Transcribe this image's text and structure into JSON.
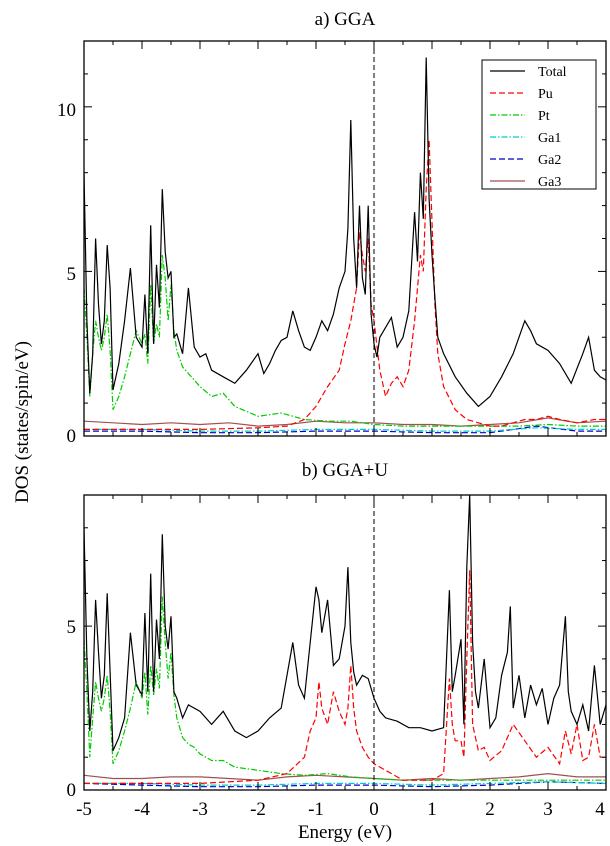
{
  "chart_data": [
    {
      "type": "line",
      "title": "a) GGA",
      "xlim": [
        -5,
        4
      ],
      "ylim": [
        0,
        12
      ],
      "ytick_labels": [
        "0",
        "5",
        "10"
      ],
      "fermi_line_x": 0,
      "legend_position": "top-right",
      "series": [
        {
          "name": "Total",
          "color": "#000000",
          "dash": "solid",
          "x": [
            -5.0,
            -4.95,
            -4.9,
            -4.85,
            -4.8,
            -4.75,
            -4.7,
            -4.65,
            -4.6,
            -4.55,
            -4.5,
            -4.45,
            -4.4,
            -4.3,
            -4.2,
            -4.1,
            -4.0,
            -3.95,
            -3.9,
            -3.85,
            -3.8,
            -3.75,
            -3.7,
            -3.65,
            -3.6,
            -3.55,
            -3.5,
            -3.45,
            -3.4,
            -3.3,
            -3.2,
            -3.1,
            -3.0,
            -2.9,
            -2.8,
            -2.6,
            -2.4,
            -2.2,
            -2.0,
            -1.9,
            -1.8,
            -1.7,
            -1.6,
            -1.5,
            -1.4,
            -1.3,
            -1.2,
            -1.1,
            -1.0,
            -0.9,
            -0.8,
            -0.7,
            -0.6,
            -0.5,
            -0.45,
            -0.4,
            -0.35,
            -0.3,
            -0.25,
            -0.2,
            -0.15,
            -0.1,
            -0.05,
            0.0,
            0.05,
            0.1,
            0.2,
            0.3,
            0.4,
            0.5,
            0.6,
            0.7,
            0.75,
            0.8,
            0.85,
            0.9,
            0.95,
            1.0,
            1.05,
            1.1,
            1.2,
            1.4,
            1.6,
            1.8,
            2.0,
            2.2,
            2.4,
            2.6,
            2.7,
            2.8,
            3.0,
            3.2,
            3.4,
            3.6,
            3.7,
            3.8,
            3.9,
            4.0
          ],
          "y": [
            8.0,
            3.5,
            1.3,
            2.5,
            6.0,
            4.0,
            2.8,
            3.5,
            5.8,
            4.5,
            1.4,
            1.8,
            2.2,
            3.5,
            5.1,
            3.0,
            2.7,
            4.3,
            2.5,
            6.4,
            2.8,
            5.2,
            3.9,
            7.5,
            5.6,
            4.8,
            5.0,
            3.0,
            3.1,
            2.5,
            4.5,
            2.7,
            2.4,
            2.5,
            2.0,
            1.8,
            1.6,
            2.0,
            2.5,
            1.9,
            2.2,
            2.6,
            2.9,
            3.0,
            3.8,
            3.2,
            2.7,
            2.6,
            3.0,
            3.5,
            3.2,
            3.7,
            4.5,
            5.0,
            6.3,
            9.6,
            6.0,
            4.5,
            7.0,
            4.8,
            4.3,
            7.0,
            3.7,
            2.8,
            2.4,
            3.0,
            3.3,
            3.6,
            2.7,
            3.0,
            3.8,
            6.8,
            5.3,
            8.0,
            6.6,
            11.5,
            7.2,
            5.5,
            4.2,
            3.0,
            2.5,
            1.8,
            1.3,
            0.9,
            1.2,
            1.8,
            2.5,
            3.5,
            3.2,
            2.8,
            2.6,
            2.2,
            1.6,
            2.5,
            3.0,
            2.0,
            1.8,
            1.7
          ]
        },
        {
          "name": "Pu",
          "color": "#ff0000",
          "dash": "6 3",
          "x": [
            -5.0,
            -4.0,
            -3.0,
            -2.0,
            -1.5,
            -1.2,
            -1.0,
            -0.8,
            -0.6,
            -0.5,
            -0.4,
            -0.3,
            -0.25,
            -0.2,
            -0.15,
            -0.1,
            -0.05,
            0.0,
            0.1,
            0.2,
            0.3,
            0.4,
            0.5,
            0.6,
            0.7,
            0.75,
            0.8,
            0.85,
            0.9,
            0.95,
            1.0,
            1.05,
            1.1,
            1.2,
            1.4,
            1.6,
            1.8,
            2.0,
            2.2,
            2.4,
            2.6,
            2.8,
            3.0,
            3.2,
            3.5,
            3.8,
            4.0
          ],
          "y": [
            0.2,
            0.2,
            0.2,
            0.25,
            0.3,
            0.5,
            0.9,
            1.5,
            2.0,
            2.8,
            3.5,
            4.5,
            6.2,
            5.5,
            5.0,
            6.0,
            4.0,
            3.5,
            2.0,
            1.2,
            1.6,
            1.8,
            1.5,
            2.0,
            3.5,
            4.5,
            5.5,
            5.0,
            7.5,
            9.0,
            6.5,
            4.0,
            2.5,
            1.5,
            0.8,
            0.5,
            0.4,
            0.3,
            0.3,
            0.4,
            0.5,
            0.5,
            0.6,
            0.5,
            0.4,
            0.5,
            0.5
          ]
        },
        {
          "name": "Pt",
          "color": "#00cc00",
          "dash": "6 2 1.5 2",
          "x": [
            -5.0,
            -4.95,
            -4.9,
            -4.85,
            -4.8,
            -4.75,
            -4.7,
            -4.65,
            -4.6,
            -4.55,
            -4.5,
            -4.4,
            -4.3,
            -4.2,
            -4.1,
            -4.0,
            -3.95,
            -3.9,
            -3.85,
            -3.8,
            -3.75,
            -3.7,
            -3.65,
            -3.6,
            -3.55,
            -3.5,
            -3.45,
            -3.4,
            -3.3,
            -3.2,
            -3.1,
            -3.0,
            -2.8,
            -2.6,
            -2.4,
            -2.0,
            -1.6,
            -1.2,
            -0.8,
            -0.4,
            0.0,
            0.5,
            1.0,
            1.5,
            2.0,
            2.5,
            3.0,
            3.5,
            4.0
          ],
          "y": [
            4.5,
            3.0,
            1.2,
            2.5,
            3.5,
            3.0,
            2.6,
            3.0,
            3.7,
            2.6,
            0.8,
            1.2,
            1.8,
            2.5,
            3.2,
            2.8,
            3.1,
            2.2,
            4.6,
            2.8,
            3.4,
            3.0,
            5.5,
            4.8,
            3.5,
            4.6,
            3.2,
            2.6,
            2.1,
            1.9,
            1.7,
            1.5,
            1.2,
            1.3,
            0.9,
            0.6,
            0.7,
            0.5,
            0.45,
            0.45,
            0.35,
            0.3,
            0.3,
            0.3,
            0.3,
            0.3,
            0.35,
            0.3,
            0.3
          ]
        },
        {
          "name": "Ga1",
          "color": "#00cccc",
          "dash": "6 2 1.5 2",
          "x": [
            -5.0,
            -4.0,
            -3.0,
            -2.0,
            -1.0,
            0.0,
            1.0,
            2.0,
            2.8,
            3.5,
            4.0
          ],
          "y": [
            0.2,
            0.2,
            0.15,
            0.15,
            0.2,
            0.2,
            0.15,
            0.15,
            0.25,
            0.2,
            0.2
          ]
        },
        {
          "name": "Ga2",
          "color": "#0000cc",
          "dash": "6 3",
          "x": [
            -5.0,
            -4.0,
            -3.0,
            -2.0,
            -1.0,
            0.0,
            1.0,
            2.0,
            2.8,
            3.5,
            4.0
          ],
          "y": [
            0.15,
            0.15,
            0.1,
            0.1,
            0.15,
            0.15,
            0.1,
            0.1,
            0.3,
            0.15,
            0.15
          ]
        },
        {
          "name": "Ga3",
          "color": "#a05050",
          "dash": "solid",
          "x": [
            -5.0,
            -4.5,
            -4.0,
            -3.5,
            -3.0,
            -2.5,
            -2.0,
            -1.5,
            -1.0,
            -0.5,
            0.0,
            0.5,
            1.0,
            1.5,
            2.0,
            2.5,
            3.0,
            3.5,
            4.0
          ],
          "y": [
            0.45,
            0.4,
            0.35,
            0.4,
            0.35,
            0.4,
            0.3,
            0.35,
            0.45,
            0.4,
            0.4,
            0.35,
            0.35,
            0.3,
            0.35,
            0.4,
            0.55,
            0.4,
            0.45
          ]
        }
      ]
    },
    {
      "type": "line",
      "title": "b) GGA+U",
      "xlim": [
        -5,
        4
      ],
      "ylim": [
        0,
        9
      ],
      "ytick_labels": [
        "0",
        "5"
      ],
      "fermi_line_x": 0,
      "series": [
        {
          "name": "Total",
          "color": "#000000",
          "dash": "solid",
          "x": [
            -5.0,
            -4.95,
            -4.9,
            -4.85,
            -4.8,
            -4.75,
            -4.7,
            -4.65,
            -4.6,
            -4.55,
            -4.5,
            -4.4,
            -4.3,
            -4.2,
            -4.1,
            -4.0,
            -3.95,
            -3.9,
            -3.85,
            -3.8,
            -3.75,
            -3.7,
            -3.65,
            -3.6,
            -3.55,
            -3.5,
            -3.45,
            -3.4,
            -3.3,
            -3.2,
            -3.1,
            -3.0,
            -2.8,
            -2.6,
            -2.4,
            -2.2,
            -2.0,
            -1.8,
            -1.6,
            -1.5,
            -1.4,
            -1.3,
            -1.2,
            -1.1,
            -1.0,
            -0.95,
            -0.9,
            -0.8,
            -0.7,
            -0.6,
            -0.5,
            -0.45,
            -0.4,
            -0.35,
            -0.3,
            -0.2,
            -0.1,
            0.0,
            0.1,
            0.2,
            0.4,
            0.6,
            0.8,
            1.0,
            1.2,
            1.3,
            1.35,
            1.4,
            1.5,
            1.55,
            1.6,
            1.65,
            1.7,
            1.75,
            1.8,
            1.9,
            2.0,
            2.1,
            2.2,
            2.3,
            2.35,
            2.4,
            2.5,
            2.6,
            2.7,
            2.8,
            2.9,
            3.0,
            3.1,
            3.2,
            3.3,
            3.35,
            3.4,
            3.5,
            3.6,
            3.7,
            3.8,
            3.9,
            4.0
          ],
          "y": [
            8.0,
            4.0,
            1.8,
            3.0,
            5.8,
            4.2,
            2.8,
            3.5,
            6.0,
            3.6,
            1.2,
            1.6,
            2.2,
            4.8,
            3.2,
            2.9,
            5.4,
            3.0,
            6.6,
            3.0,
            5.2,
            4.0,
            7.8,
            5.0,
            4.3,
            5.3,
            3.0,
            2.8,
            2.2,
            2.6,
            2.5,
            2.4,
            2.0,
            2.4,
            1.8,
            1.6,
            1.8,
            2.2,
            2.5,
            3.5,
            4.5,
            3.2,
            2.8,
            4.5,
            6.2,
            5.8,
            4.8,
            5.8,
            3.8,
            4.0,
            5.0,
            6.8,
            4.5,
            3.6,
            3.2,
            3.5,
            3.4,
            2.8,
            2.4,
            2.2,
            2.1,
            1.9,
            1.9,
            1.8,
            1.9,
            6.1,
            3.0,
            3.5,
            4.6,
            2.0,
            6.8,
            9.0,
            4.5,
            3.0,
            2.5,
            4.0,
            1.9,
            2.2,
            3.5,
            4.2,
            5.6,
            2.5,
            3.5,
            2.2,
            3.2,
            2.6,
            3.1,
            2.0,
            2.8,
            3.2,
            5.3,
            3.0,
            2.4,
            2.0,
            2.6,
            1.8,
            3.8,
            2.0,
            2.6
          ]
        },
        {
          "name": "Pu",
          "color": "#ff0000",
          "dash": "6 3",
          "x": [
            -5.0,
            -4.0,
            -3.0,
            -2.0,
            -1.5,
            -1.2,
            -1.1,
            -1.0,
            -0.95,
            -0.9,
            -0.8,
            -0.7,
            -0.6,
            -0.5,
            -0.45,
            -0.4,
            -0.35,
            -0.3,
            -0.2,
            -0.1,
            0.0,
            0.2,
            0.5,
            1.0,
            1.2,
            1.3,
            1.35,
            1.4,
            1.5,
            1.55,
            1.6,
            1.65,
            1.7,
            1.75,
            1.8,
            1.9,
            2.0,
            2.2,
            2.4,
            2.6,
            2.8,
            3.0,
            3.2,
            3.3,
            3.4,
            3.5,
            3.6,
            3.7,
            3.8,
            3.9,
            4.0
          ],
          "y": [
            0.2,
            0.2,
            0.2,
            0.3,
            0.5,
            1.0,
            1.8,
            2.2,
            3.3,
            2.5,
            2.0,
            3.0,
            2.4,
            2.0,
            2.5,
            3.8,
            2.5,
            1.8,
            1.3,
            1.0,
            0.8,
            0.6,
            0.3,
            0.3,
            0.5,
            3.4,
            2.0,
            1.5,
            1.5,
            1.0,
            4.0,
            6.7,
            2.0,
            1.6,
            1.2,
            1.3,
            0.9,
            1.2,
            2.0,
            1.5,
            1.0,
            1.3,
            0.8,
            1.8,
            1.1,
            2.0,
            0.9,
            1.0,
            2.0,
            1.0,
            1.0
          ]
        },
        {
          "name": "Pt",
          "color": "#00cc00",
          "dash": "6 2 1.5 2",
          "x": [
            -5.0,
            -4.95,
            -4.9,
            -4.85,
            -4.8,
            -4.75,
            -4.7,
            -4.65,
            -4.6,
            -4.55,
            -4.5,
            -4.4,
            -4.3,
            -4.2,
            -4.1,
            -4.0,
            -3.95,
            -3.9,
            -3.85,
            -3.8,
            -3.75,
            -3.7,
            -3.65,
            -3.6,
            -3.55,
            -3.5,
            -3.45,
            -3.4,
            -3.3,
            -3.2,
            -3.1,
            -3.0,
            -2.8,
            -2.6,
            -2.4,
            -2.0,
            -1.6,
            -1.2,
            -0.8,
            -0.4,
            0.0,
            0.5,
            1.0,
            1.5,
            2.0,
            2.5,
            3.0,
            3.5,
            4.0
          ],
          "y": [
            4.6,
            3.0,
            1.0,
            2.2,
            3.3,
            2.8,
            2.4,
            2.8,
            3.5,
            2.4,
            0.8,
            1.2,
            1.8,
            2.5,
            3.3,
            2.8,
            3.6,
            2.3,
            3.8,
            2.9,
            3.7,
            3.1,
            5.9,
            4.5,
            3.4,
            4.2,
            2.9,
            2.2,
            1.6,
            1.4,
            1.3,
            1.1,
            0.9,
            0.9,
            0.7,
            0.6,
            0.5,
            0.45,
            0.5,
            0.4,
            0.35,
            0.3,
            0.3,
            0.3,
            0.3,
            0.3,
            0.3,
            0.3,
            0.3
          ]
        },
        {
          "name": "Ga1",
          "color": "#00cccc",
          "dash": "6 2 1.5 2",
          "x": [
            -5.0,
            -4.0,
            -3.0,
            -2.0,
            -1.0,
            0.0,
            1.0,
            2.0,
            3.0,
            4.0
          ],
          "y": [
            0.2,
            0.2,
            0.15,
            0.15,
            0.2,
            0.2,
            0.15,
            0.2,
            0.25,
            0.2
          ]
        },
        {
          "name": "Ga2",
          "color": "#0000cc",
          "dash": "6 3",
          "x": [
            -5.0,
            -4.0,
            -3.0,
            -2.0,
            -1.0,
            0.0,
            1.0,
            2.0,
            3.0,
            4.0
          ],
          "y": [
            0.2,
            0.15,
            0.1,
            0.1,
            0.15,
            0.15,
            0.1,
            0.15,
            0.25,
            0.2
          ]
        },
        {
          "name": "Ga3",
          "color": "#a05050",
          "dash": "solid",
          "x": [
            -5.0,
            -4.5,
            -4.0,
            -3.5,
            -3.0,
            -2.5,
            -2.0,
            -1.5,
            -1.0,
            -0.5,
            0.0,
            0.5,
            1.0,
            1.5,
            2.0,
            2.5,
            3.0,
            3.5,
            4.0
          ],
          "y": [
            0.45,
            0.35,
            0.35,
            0.4,
            0.4,
            0.35,
            0.3,
            0.4,
            0.45,
            0.4,
            0.35,
            0.3,
            0.35,
            0.3,
            0.35,
            0.4,
            0.5,
            0.4,
            0.4
          ]
        }
      ]
    }
  ],
  "xlabel": "Energy (eV)",
  "ylabel": "DOS (states/spin/eV)",
  "xtick_labels": [
    "-5",
    "-4",
    "-3",
    "-2",
    "-1",
    "0",
    "1",
    "2",
    "3",
    "4"
  ]
}
